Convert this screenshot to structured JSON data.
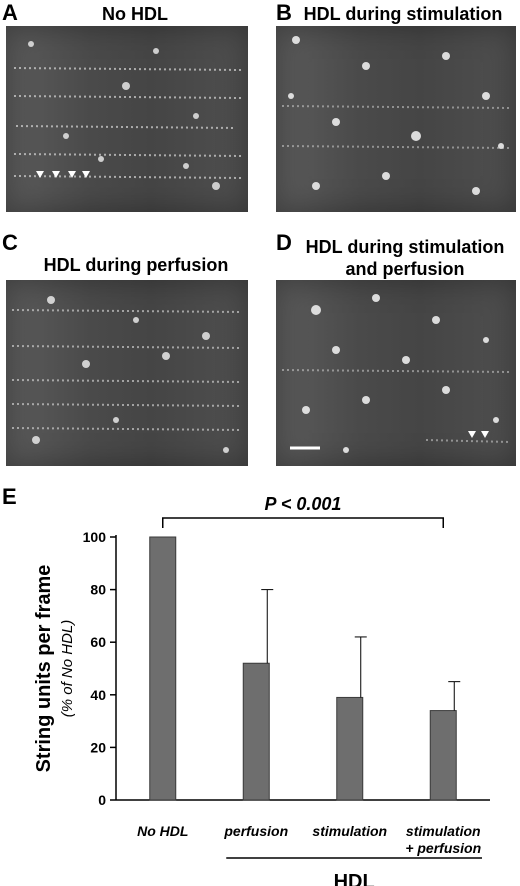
{
  "panels": [
    {
      "letter": "A",
      "title": "No HDL"
    },
    {
      "letter": "B",
      "title": "HDL during stimulation"
    },
    {
      "letter": "C",
      "title": "HDL during perfusion"
    },
    {
      "letter": "D",
      "title": "HDL during stimulation and perfusion",
      "title_line1": "HDL during stimulation",
      "title_line2": "and perfusion"
    }
  ],
  "panel_e_letter": "E",
  "chart_data": {
    "type": "bar",
    "categories": [
      "No HDL",
      "perfusion",
      "stimulation",
      "stimulation\n+ perfusion"
    ],
    "category_lines": [
      [
        "No HDL"
      ],
      [
        "perfusion"
      ],
      [
        "stimulation"
      ],
      [
        "stimulation",
        "+ perfusion"
      ]
    ],
    "values": [
      100,
      52,
      39,
      34
    ],
    "error_upper": [
      0,
      28,
      23,
      11
    ],
    "ylabel": "String units per frame",
    "ylabel_sub": "(% of No HDL)",
    "yticks": [
      0,
      20,
      40,
      60,
      80,
      100
    ],
    "ylim": [
      0,
      100
    ],
    "group_label": "HDL",
    "significance": "P < 0.001",
    "bar_color": "#6e6e6e"
  }
}
